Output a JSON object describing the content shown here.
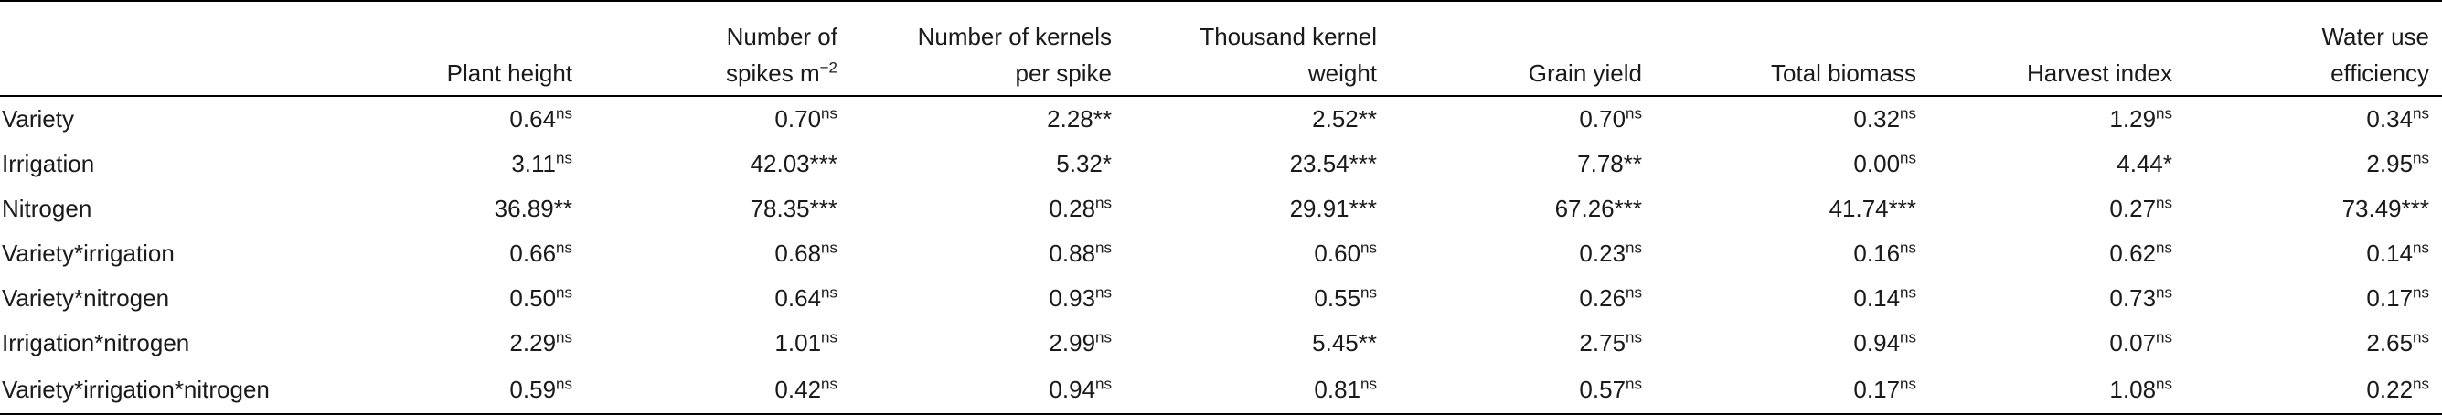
{
  "table": {
    "headers": [
      {
        "line1": "",
        "line2": ""
      },
      {
        "line1": "",
        "line2": "Plant height"
      },
      {
        "line1": "Number of",
        "line2": "spikes m",
        "exp": "−2"
      },
      {
        "line1": "Number of kernels",
        "line2": "per spike"
      },
      {
        "line1": "Thousand kernel",
        "line2": "weight"
      },
      {
        "line1": "",
        "line2": "Grain yield"
      },
      {
        "line1": "",
        "line2": "Total biomass"
      },
      {
        "line1": "",
        "line2": "Harvest index"
      },
      {
        "line1": "Water use",
        "line2": "efficiency"
      }
    ],
    "rows": [
      {
        "label": "Variety",
        "cells": [
          {
            "v": "0.64",
            "s": "ns"
          },
          {
            "v": "0.70",
            "s": "ns"
          },
          {
            "v": "2.28",
            "s": "**"
          },
          {
            "v": "2.52",
            "s": "**"
          },
          {
            "v": "0.70",
            "s": "ns"
          },
          {
            "v": "0.32",
            "s": "ns"
          },
          {
            "v": "1.29",
            "s": "ns"
          },
          {
            "v": "0.34",
            "s": "ns"
          }
        ]
      },
      {
        "label": "Irrigation",
        "cells": [
          {
            "v": "3.11",
            "s": "ns"
          },
          {
            "v": "42.03",
            "s": "***"
          },
          {
            "v": "5.32",
            "s": "*"
          },
          {
            "v": "23.54",
            "s": "***"
          },
          {
            "v": "7.78",
            "s": "**"
          },
          {
            "v": "0.00",
            "s": "ns"
          },
          {
            "v": "4.44",
            "s": "*"
          },
          {
            "v": "2.95",
            "s": "ns"
          }
        ]
      },
      {
        "label": "Nitrogen",
        "cells": [
          {
            "v": "36.89",
            "s": "**"
          },
          {
            "v": "78.35",
            "s": "***"
          },
          {
            "v": "0.28",
            "s": "ns"
          },
          {
            "v": "29.91",
            "s": "***"
          },
          {
            "v": "67.26",
            "s": "***"
          },
          {
            "v": "41.74",
            "s": "***"
          },
          {
            "v": "0.27",
            "s": "ns"
          },
          {
            "v": "73.49",
            "s": "***"
          }
        ]
      },
      {
        "label": "Variety*irrigation",
        "cells": [
          {
            "v": "0.66",
            "s": "ns"
          },
          {
            "v": "0.68",
            "s": "ns"
          },
          {
            "v": "0.88",
            "s": "ns"
          },
          {
            "v": "0.60",
            "s": "ns"
          },
          {
            "v": "0.23",
            "s": "ns"
          },
          {
            "v": "0.16",
            "s": "ns"
          },
          {
            "v": "0.62",
            "s": "ns"
          },
          {
            "v": "0.14",
            "s": "ns"
          }
        ]
      },
      {
        "label": "Variety*nitrogen",
        "cells": [
          {
            "v": "0.50",
            "s": "ns"
          },
          {
            "v": "0.64",
            "s": "ns"
          },
          {
            "v": "0.93",
            "s": "ns"
          },
          {
            "v": "0.55",
            "s": "ns"
          },
          {
            "v": "0.26",
            "s": "ns"
          },
          {
            "v": "0.14",
            "s": "ns"
          },
          {
            "v": "0.73",
            "s": "ns"
          },
          {
            "v": "0.17",
            "s": "ns"
          }
        ]
      },
      {
        "label": "Irrigation*nitrogen",
        "cells": [
          {
            "v": "2.29",
            "s": "ns"
          },
          {
            "v": "1.01",
            "s": "ns"
          },
          {
            "v": "2.99",
            "s": "ns"
          },
          {
            "v": "5.45",
            "s": "**"
          },
          {
            "v": "2.75",
            "s": "ns"
          },
          {
            "v": "0.94",
            "s": "ns"
          },
          {
            "v": "0.07",
            "s": "ns"
          },
          {
            "v": "2.65",
            "s": "ns"
          }
        ]
      },
      {
        "label": "Variety*irrigation*nitrogen",
        "cells": [
          {
            "v": "0.59",
            "s": "ns"
          },
          {
            "v": "0.42",
            "s": "ns"
          },
          {
            "v": "0.94",
            "s": "ns"
          },
          {
            "v": "0.81",
            "s": "ns"
          },
          {
            "v": "0.57",
            "s": "ns"
          },
          {
            "v": "0.17",
            "s": "ns"
          },
          {
            "v": "1.08",
            "s": "ns"
          },
          {
            "v": "0.22",
            "s": "ns"
          }
        ]
      }
    ]
  }
}
